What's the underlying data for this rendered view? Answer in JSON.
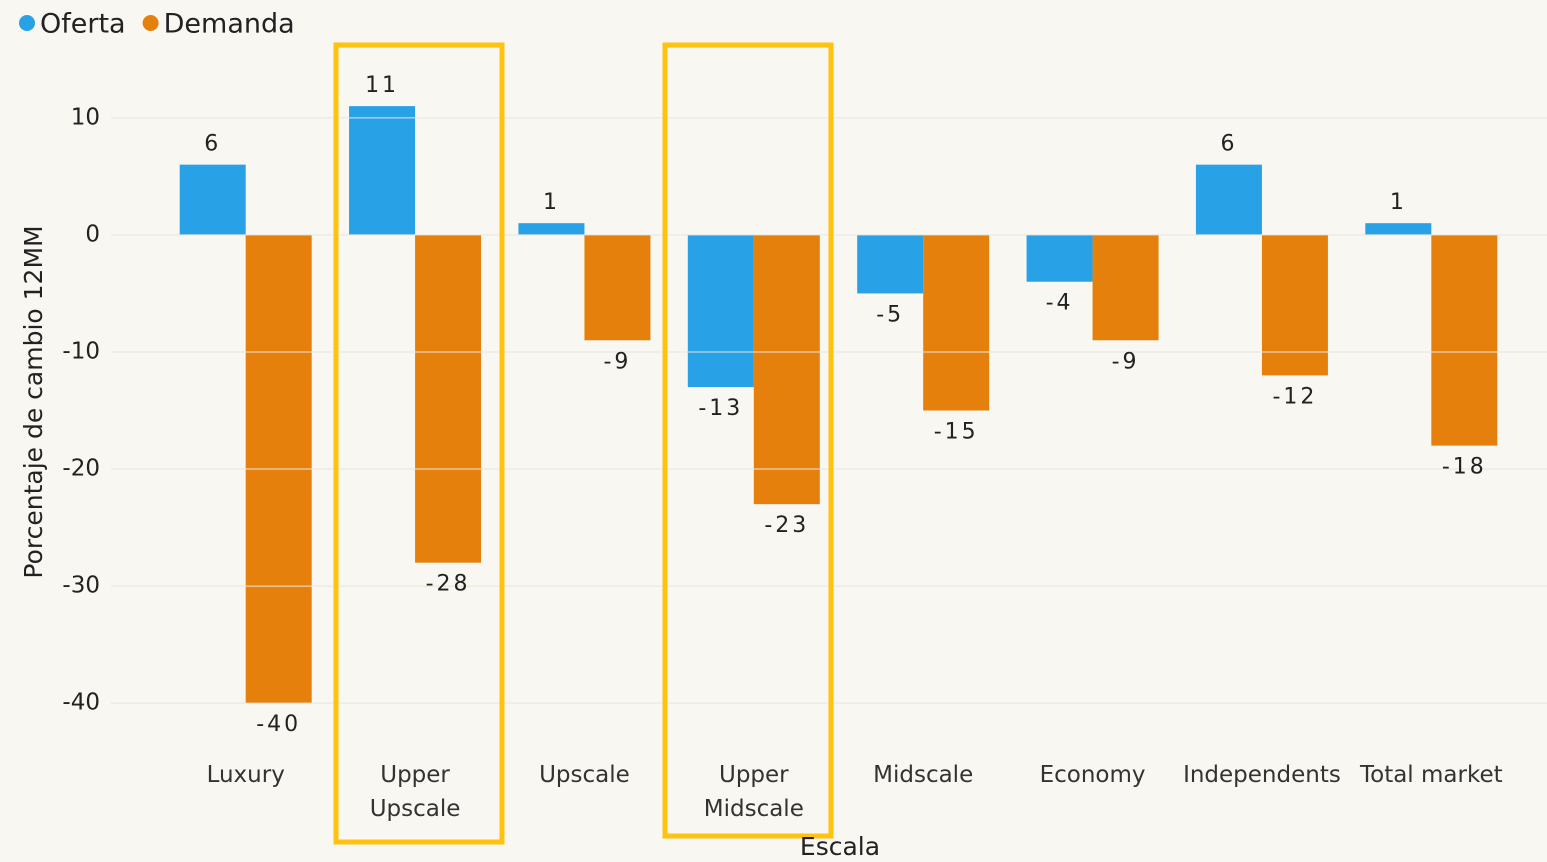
{
  "chart_data": {
    "type": "bar",
    "x_label": "Escala",
    "y_label": "Porcentaje de cambio 12MM",
    "categories": [
      "Luxury",
      "Upper Upscale",
      "Upscale",
      "Upper Midscale",
      "Midscale",
      "Economy",
      "Independents",
      "Total market"
    ],
    "series": [
      {
        "name": "Oferta",
        "color": "#29a1e6",
        "values": [
          6,
          11,
          1,
          -13,
          -5,
          -4,
          6,
          1
        ]
      },
      {
        "name": "Demanda",
        "color": "#e6800c",
        "values": [
          -40,
          -28,
          -9,
          -23,
          -15,
          -9,
          -12,
          -18
        ]
      }
    ],
    "ylim": [
      -44,
      14
    ],
    "yticks": [
      10,
      0,
      -10,
      -20,
      -30,
      -40
    ],
    "grid": true,
    "legend": "top-left"
  }
}
